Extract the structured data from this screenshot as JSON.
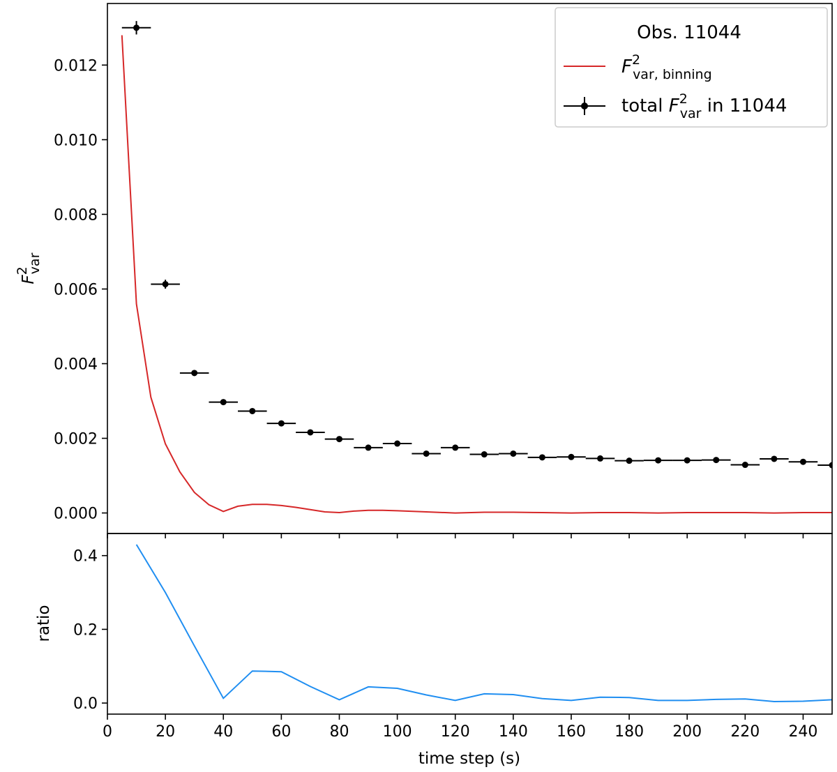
{
  "chart_data": [
    {
      "type": "line",
      "panel": "top",
      "title": "",
      "xlabel": "",
      "ylabel": {
        "main": "F",
        "sup": "2",
        "sub": "var"
      },
      "xlim": [
        0,
        250
      ],
      "ylim": [
        -0.00055,
        0.01365
      ],
      "yticks": [
        0.0,
        0.002,
        0.004,
        0.006,
        0.008,
        0.01,
        0.012
      ],
      "ytick_labels": [
        "0.000",
        "0.002",
        "0.004",
        "0.006",
        "0.008",
        "0.010",
        "0.012"
      ],
      "legend": {
        "position": "top-right",
        "title": "Obs. 11044",
        "entries": [
          {
            "type": "line",
            "main": "F",
            "sup": "2",
            "sub": "var, binning",
            "pre": "",
            "post": ""
          },
          {
            "type": "errorbar",
            "main": "F",
            "sup": "2",
            "sub": "var",
            "pre": "total ",
            "post": " in 11044"
          }
        ]
      },
      "series": [
        {
          "name": "F²var, binning",
          "kind": "line",
          "color": "#d62728",
          "x": [
            5,
            10,
            15,
            20,
            25,
            30,
            35,
            40,
            45,
            50,
            55,
            60,
            65,
            70,
            75,
            80,
            85,
            90,
            95,
            100,
            110,
            120,
            130,
            140,
            150,
            160,
            170,
            180,
            190,
            200,
            210,
            220,
            230,
            240,
            250
          ],
          "y": [
            0.0128,
            0.0056,
            0.0031,
            0.00185,
            0.0011,
            0.00055,
            0.00022,
            4e-05,
            0.00018,
            0.00023,
            0.00023,
            0.0002,
            0.00015,
            9e-05,
            3e-05,
            1e-05,
            5e-05,
            7e-05,
            7e-05,
            6e-05,
            3e-05,
            0.0,
            2e-05,
            2e-05,
            1e-05,
            0.0,
            1e-05,
            1e-05,
            0.0,
            1e-05,
            1e-05,
            1e-05,
            0.0,
            1e-05,
            1e-05
          ]
        },
        {
          "name": "total F²var in 11044",
          "kind": "errorbar",
          "color": "#000000",
          "x": [
            10,
            20,
            30,
            40,
            50,
            60,
            70,
            80,
            90,
            100,
            110,
            120,
            130,
            140,
            150,
            160,
            170,
            180,
            190,
            200,
            210,
            220,
            230,
            240,
            250
          ],
          "y": [
            0.013,
            0.00613,
            0.00375,
            0.00297,
            0.00273,
            0.0024,
            0.00216,
            0.00198,
            0.00175,
            0.00186,
            0.00159,
            0.00175,
            0.00157,
            0.00159,
            0.00149,
            0.0015,
            0.00146,
            0.0014,
            0.00141,
            0.00141,
            0.00142,
            0.00129,
            0.00145,
            0.00137,
            0.00128
          ],
          "xerr": 5,
          "yerr": [
            0.00018,
            0.00012,
            8e-05,
            6e-05,
            5e-05,
            4e-05,
            4e-05,
            3e-05,
            3e-05,
            3e-05,
            3e-05,
            3e-05,
            3e-05,
            3e-05,
            3e-05,
            3e-05,
            3e-05,
            3e-05,
            3e-05,
            3e-05,
            3e-05,
            3e-05,
            3e-05,
            3e-05,
            3e-05
          ]
        }
      ]
    },
    {
      "type": "line",
      "panel": "bottom",
      "title": "",
      "xlabel": "time step (s)",
      "ylabel": "ratio",
      "xlim": [
        0,
        250
      ],
      "ylim": [
        -0.03,
        0.46
      ],
      "xticks": [
        0,
        20,
        40,
        60,
        80,
        100,
        120,
        140,
        160,
        180,
        200,
        220,
        240
      ],
      "xtick_labels": [
        "0",
        "20",
        "40",
        "60",
        "80",
        "100",
        "120",
        "140",
        "160",
        "180",
        "200",
        "220",
        "240"
      ],
      "yticks": [
        0.0,
        0.2,
        0.4
      ],
      "ytick_labels": [
        "0.0",
        "0.2",
        "0.4"
      ],
      "series": [
        {
          "name": "ratio",
          "kind": "line",
          "color": "#1f8ef1",
          "x": [
            10,
            20,
            30,
            40,
            50,
            60,
            70,
            80,
            90,
            100,
            110,
            120,
            130,
            140,
            150,
            160,
            170,
            180,
            190,
            200,
            210,
            220,
            230,
            240,
            250
          ],
          "y": [
            0.43,
            0.3,
            0.155,
            0.013,
            0.087,
            0.085,
            0.045,
            0.009,
            0.044,
            0.04,
            0.022,
            0.007,
            0.025,
            0.023,
            0.012,
            0.007,
            0.016,
            0.015,
            0.007,
            0.007,
            0.01,
            0.011,
            0.004,
            0.005,
            0.009
          ]
        }
      ]
    }
  ]
}
